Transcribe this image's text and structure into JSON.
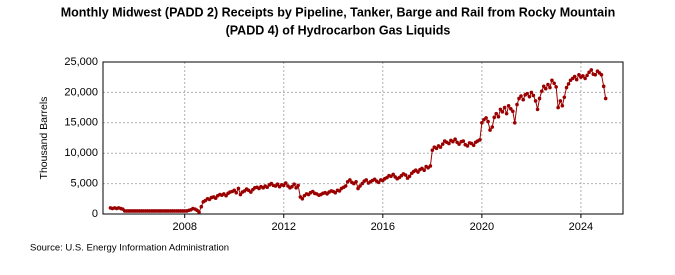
{
  "chart_data": {
    "type": "line",
    "title": [
      "Monthly Midwest (PADD 2) Receipts by Pipeline, Tanker, Barge and Rail from Rocky Mountain",
      "(PADD 4) of Hydrocarbon Gas Liquids"
    ],
    "ylabel": "Thousand Barrels",
    "source": "Source: U.S. Energy Information Administration",
    "xlim": [
      2004.7,
      2025.7
    ],
    "xticks": [
      2008,
      2012,
      2016,
      2020,
      2024
    ],
    "ylim": [
      0,
      25000
    ],
    "yticks": [
      0,
      {
        "value": 5000,
        "label": "5,000"
      },
      {
        "value": 10000,
        "label": "10,000"
      },
      {
        "value": 15000,
        "label": "15,000"
      },
      {
        "value": 20000,
        "label": "20,000"
      },
      {
        "value": 25000,
        "label": "25,000"
      }
    ],
    "grid": true,
    "series": [
      {
        "name": "Receipts",
        "color": "#9b0000",
        "x": [
          2005,
          2005.08,
          2005.17,
          2005.25,
          2005.33,
          2005.42,
          2005.5,
          2005.58,
          2005.67,
          2005.75,
          2005.83,
          2005.92,
          2006,
          2006.08,
          2006.17,
          2006.25,
          2006.33,
          2006.42,
          2006.5,
          2006.58,
          2006.67,
          2006.75,
          2006.83,
          2006.92,
          2007,
          2007.08,
          2007.17,
          2007.25,
          2007.33,
          2007.42,
          2007.5,
          2007.58,
          2007.67,
          2007.75,
          2007.83,
          2007.92,
          2008,
          2008.08,
          2008.17,
          2008.25,
          2008.33,
          2008.42,
          2008.5,
          2008.58,
          2008.67,
          2008.75,
          2008.83,
          2008.92,
          2009,
          2009.08,
          2009.17,
          2009.25,
          2009.33,
          2009.42,
          2009.5,
          2009.58,
          2009.67,
          2009.75,
          2009.83,
          2009.92,
          2010,
          2010.08,
          2010.17,
          2010.25,
          2010.33,
          2010.42,
          2010.5,
          2010.58,
          2010.67,
          2010.75,
          2010.83,
          2010.92,
          2011,
          2011.08,
          2011.17,
          2011.25,
          2011.33,
          2011.42,
          2011.5,
          2011.58,
          2011.67,
          2011.75,
          2011.83,
          2011.92,
          2012,
          2012.08,
          2012.17,
          2012.25,
          2012.33,
          2012.42,
          2012.5,
          2012.58,
          2012.67,
          2012.75,
          2012.83,
          2012.92,
          2013,
          2013.08,
          2013.17,
          2013.25,
          2013.33,
          2013.42,
          2013.5,
          2013.58,
          2013.67,
          2013.75,
          2013.83,
          2013.92,
          2014,
          2014.08,
          2014.17,
          2014.25,
          2014.33,
          2014.42,
          2014.5,
          2014.58,
          2014.67,
          2014.75,
          2014.83,
          2014.92,
          2015,
          2015.08,
          2015.17,
          2015.25,
          2015.33,
          2015.42,
          2015.5,
          2015.58,
          2015.67,
          2015.75,
          2015.83,
          2015.92,
          2016,
          2016.08,
          2016.17,
          2016.25,
          2016.33,
          2016.42,
          2016.5,
          2016.58,
          2016.67,
          2016.75,
          2016.83,
          2016.92,
          2017,
          2017.08,
          2017.17,
          2017.25,
          2017.33,
          2017.42,
          2017.5,
          2017.58,
          2017.67,
          2017.75,
          2017.83,
          2017.92,
          2018,
          2018.08,
          2018.17,
          2018.25,
          2018.33,
          2018.42,
          2018.5,
          2018.58,
          2018.67,
          2018.75,
          2018.83,
          2018.92,
          2019,
          2019.08,
          2019.17,
          2019.25,
          2019.33,
          2019.42,
          2019.5,
          2019.58,
          2019.67,
          2019.75,
          2019.83,
          2019.92,
          2020,
          2020.08,
          2020.17,
          2020.25,
          2020.33,
          2020.42,
          2020.5,
          2020.58,
          2020.67,
          2020.75,
          2020.83,
          2020.92,
          2021,
          2021.08,
          2021.17,
          2021.25,
          2021.33,
          2021.42,
          2021.5,
          2021.58,
          2021.67,
          2021.75,
          2021.83,
          2021.92,
          2022,
          2022.08,
          2022.17,
          2022.25,
          2022.33,
          2022.42,
          2022.5,
          2022.58,
          2022.67,
          2022.75,
          2022.83,
          2022.92,
          2023,
          2023.08,
          2023.17,
          2023.25,
          2023.33,
          2023.42,
          2023.5,
          2023.58,
          2023.67,
          2023.75,
          2023.83,
          2023.92,
          2024,
          2024.08,
          2024.17,
          2024.25,
          2024.33,
          2024.42,
          2024.5,
          2024.58,
          2024.67,
          2024.75,
          2024.83,
          2024.92,
          2025
        ],
        "values": [
          1000,
          900,
          1000,
          900,
          1000,
          900,
          800,
          500,
          500,
          500,
          500,
          500,
          500,
          500,
          500,
          500,
          500,
          500,
          500,
          500,
          500,
          500,
          500,
          500,
          500,
          500,
          500,
          500,
          500,
          500,
          500,
          500,
          500,
          500,
          500,
          500,
          500,
          500,
          600,
          700,
          900,
          800,
          600,
          300,
          1200,
          2000,
          2200,
          2500,
          2400,
          2700,
          2800,
          2600,
          3000,
          3200,
          3100,
          3300,
          3000,
          3400,
          3600,
          3700,
          3900,
          3500,
          4200,
          3200,
          3600,
          3800,
          4100,
          3900,
          3600,
          4000,
          4300,
          4400,
          4200,
          4500,
          4300,
          4600,
          4400,
          4800,
          5000,
          4700,
          4600,
          4900,
          4500,
          4800,
          4700,
          5100,
          4600,
          4300,
          4500,
          4900,
          4300,
          4700,
          2800,
          2500,
          3000,
          3300,
          3200,
          3500,
          3700,
          3400,
          3300,
          3100,
          3200,
          3400,
          3500,
          3300,
          3600,
          3800,
          3700,
          3500,
          3900,
          3800,
          4200,
          4400,
          4600,
          5300,
          5600,
          5200,
          5000,
          5300,
          4200,
          4600,
          5000,
          5400,
          5600,
          5100,
          5300,
          5500,
          5700,
          5400,
          5200,
          5600,
          5500,
          5800,
          6000,
          6300,
          6200,
          6500,
          6100,
          5800,
          6000,
          6300,
          6600,
          6400,
          5900,
          6200,
          6700,
          7000,
          7200,
          6900,
          7300,
          7500,
          7200,
          7800,
          7600,
          7900,
          10500,
          11000,
          10800,
          11200,
          11000,
          11500,
          12000,
          11800,
          11600,
          12100,
          11900,
          12300,
          11800,
          11500,
          11900,
          12000,
          11400,
          11200,
          11700,
          11600,
          11300,
          11800,
          12000,
          12200,
          15000,
          15500,
          15800,
          15200,
          13800,
          14300,
          15900,
          16500,
          16000,
          17200,
          16800,
          17500,
          16500,
          17800,
          17300,
          16900,
          15000,
          18000,
          19000,
          19400,
          18800,
          19600,
          19800,
          19300,
          20000,
          19500,
          18600,
          17200,
          19000,
          20200,
          21000,
          20600,
          21300,
          20800,
          22000,
          21500,
          20900,
          17500,
          18600,
          17800,
          19200,
          20800,
          21400,
          22000,
          22300,
          22600,
          22100,
          22900,
          22500,
          22700,
          22300,
          22800,
          23300,
          23700,
          23000,
          22900,
          23500,
          23200,
          22900,
          21000,
          19000
        ]
      }
    ]
  }
}
